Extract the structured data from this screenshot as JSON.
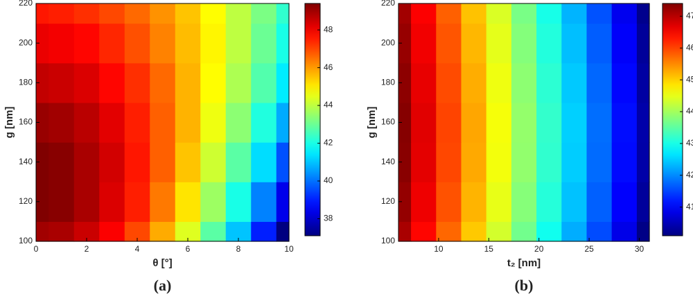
{
  "chart_data": [
    {
      "type": "contour",
      "colormap": "jet",
      "xlabel": "θ [°]",
      "ylabel": "g [nm]",
      "panel_label": "(a)",
      "x": [
        0,
        1,
        2,
        3,
        4,
        5,
        6,
        7,
        8,
        9,
        10
      ],
      "y": [
        100,
        120,
        140,
        160,
        180,
        200,
        220
      ],
      "z": [
        [
          49.0,
          48.9,
          48.5,
          47.9,
          47.0,
          45.8,
          44.4,
          42.8,
          41.0,
          39.0,
          36.9
        ],
        [
          49.4,
          49.3,
          48.9,
          48.3,
          47.5,
          46.4,
          45.1,
          43.6,
          42.0,
          40.2,
          38.4
        ],
        [
          49.4,
          49.3,
          48.9,
          48.4,
          47.6,
          46.7,
          45.5,
          44.2,
          42.8,
          41.3,
          39.6
        ],
        [
          49.1,
          49.0,
          48.7,
          48.2,
          47.5,
          46.7,
          45.7,
          44.6,
          43.4,
          42.1,
          40.7
        ],
        [
          48.6,
          48.5,
          48.3,
          47.8,
          47.3,
          46.6,
          45.7,
          44.8,
          43.8,
          42.7,
          41.5
        ],
        [
          48.1,
          48.0,
          47.8,
          47.4,
          46.9,
          46.3,
          45.6,
          44.9,
          44.0,
          43.0,
          42.0
        ],
        [
          47.6,
          47.5,
          47.3,
          47.0,
          46.6,
          46.1,
          45.5,
          44.8,
          44.0,
          43.2,
          42.3
        ]
      ],
      "xlim": [
        0,
        10
      ],
      "ylim": [
        100,
        220
      ],
      "xticks": [
        0,
        2,
        4,
        6,
        8,
        10
      ],
      "yticks": [
        100,
        120,
        140,
        160,
        180,
        200,
        220
      ],
      "clim": [
        37.1,
        49.4
      ],
      "cticks": [
        38,
        40,
        42,
        44,
        46,
        48
      ]
    },
    {
      "type": "contour",
      "colormap": "jet",
      "xlabel": "t₂ [nm]",
      "ylabel": "g [nm]",
      "panel_label": "(b)",
      "x": [
        6,
        8.5,
        11,
        13.5,
        16,
        18.5,
        21,
        23.5,
        26,
        28.5,
        31
      ],
      "y": [
        100,
        120,
        140,
        160,
        180,
        200,
        220
      ],
      "z": [
        [
          47.1,
          46.45,
          45.75,
          45.05,
          44.35,
          43.65,
          42.95,
          42.25,
          41.55,
          40.85,
          40.15
        ],
        [
          47.25,
          46.6,
          45.9,
          45.2,
          44.5,
          43.8,
          43.1,
          42.4,
          41.7,
          41.0,
          40.3
        ],
        [
          47.33,
          46.68,
          45.98,
          45.28,
          44.58,
          43.88,
          43.18,
          42.48,
          41.78,
          41.08,
          40.38
        ],
        [
          47.35,
          46.7,
          46.0,
          45.3,
          44.6,
          43.9,
          43.2,
          42.5,
          41.8,
          41.1,
          40.4
        ],
        [
          47.3,
          46.65,
          45.95,
          45.25,
          44.55,
          43.85,
          43.15,
          42.45,
          41.75,
          41.05,
          40.35
        ],
        [
          47.23,
          46.58,
          45.88,
          45.18,
          44.48,
          43.78,
          43.08,
          42.38,
          41.68,
          40.98,
          40.28
        ],
        [
          47.15,
          46.5,
          45.8,
          45.1,
          44.4,
          43.7,
          43.0,
          42.3,
          41.6,
          40.9,
          40.2
        ]
      ],
      "xlim": [
        6,
        31
      ],
      "ylim": [
        100,
        220
      ],
      "xticks": [
        10,
        15,
        20,
        25,
        30
      ],
      "yticks": [
        100,
        120,
        140,
        160,
        180,
        200,
        220
      ],
      "clim": [
        40.1,
        47.4
      ],
      "cticks": [
        41,
        42,
        43,
        44,
        45,
        46,
        47
      ]
    }
  ]
}
